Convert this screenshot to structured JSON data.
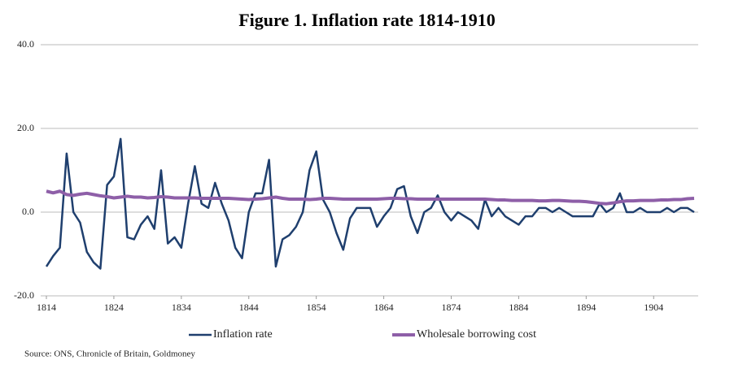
{
  "chart_data": {
    "type": "line",
    "title": "Figure 1. Inflation rate 1814-1910",
    "source": "Source: ONS, Chronicle of Britain, Goldmoney",
    "x": [
      1814,
      1815,
      1816,
      1817,
      1818,
      1819,
      1820,
      1821,
      1822,
      1823,
      1824,
      1825,
      1826,
      1827,
      1828,
      1829,
      1830,
      1831,
      1832,
      1833,
      1834,
      1835,
      1836,
      1837,
      1838,
      1839,
      1840,
      1841,
      1842,
      1843,
      1844,
      1845,
      1846,
      1847,
      1848,
      1849,
      1850,
      1851,
      1852,
      1853,
      1854,
      1855,
      1856,
      1857,
      1858,
      1859,
      1860,
      1861,
      1862,
      1863,
      1864,
      1865,
      1866,
      1867,
      1868,
      1869,
      1870,
      1871,
      1872,
      1873,
      1874,
      1875,
      1876,
      1877,
      1878,
      1879,
      1880,
      1881,
      1882,
      1883,
      1884,
      1885,
      1886,
      1887,
      1888,
      1889,
      1890,
      1891,
      1892,
      1893,
      1894,
      1895,
      1896,
      1897,
      1898,
      1899,
      1900,
      1901,
      1902,
      1903,
      1904,
      1905,
      1906,
      1907,
      1908,
      1909,
      1910
    ],
    "series": [
      {
        "name": "Inflation rate",
        "color": "#1f3f6e",
        "width": 2.5,
        "values": [
          -13,
          -10.5,
          -8.5,
          14,
          0,
          -2.5,
          -9.5,
          -12,
          -13.5,
          6.5,
          8.5,
          17.5,
          -6,
          -6.5,
          -3,
          -1,
          -4,
          10,
          -7.5,
          -6,
          -8.5,
          2,
          11,
          2,
          1,
          7,
          2,
          -2,
          -8.5,
          -11,
          0,
          4.5,
          4.5,
          12.5,
          -13,
          -6.5,
          -5.5,
          -3.5,
          0,
          10,
          14.5,
          3,
          0,
          -5,
          -9,
          -1.5,
          1,
          1,
          1,
          -3.5,
          -1,
          1,
          5.5,
          6.2,
          -1,
          -5,
          0,
          1,
          4,
          0,
          -2,
          0,
          -1,
          -2,
          -4,
          3,
          -1,
          1,
          -1,
          -2,
          -3,
          -1,
          -1,
          1,
          1,
          0,
          1,
          0,
          -1,
          -1,
          -1,
          -1,
          2,
          0,
          1,
          4.5,
          0,
          0,
          1,
          0,
          0,
          0,
          1,
          0,
          1,
          1,
          0
        ]
      },
      {
        "name": "Wholesale borrowing cost",
        "color": "#8e5fa8",
        "width": 4,
        "values": [
          5,
          4.6,
          5,
          4.2,
          4,
          4.3,
          4.5,
          4.2,
          3.9,
          3.7,
          3.4,
          3.6,
          3.8,
          3.6,
          3.6,
          3.4,
          3.5,
          3.7,
          3.6,
          3.4,
          3.4,
          3.4,
          3.4,
          3.3,
          3.3,
          3.3,
          3.3,
          3.3,
          3.2,
          3.1,
          3,
          3.1,
          3.2,
          3.4,
          3.6,
          3.3,
          3.1,
          3.1,
          3.1,
          3.0,
          3.1,
          3.3,
          3.3,
          3.2,
          3.1,
          3.1,
          3.1,
          3.1,
          3.1,
          3.1,
          3.2,
          3.3,
          3.3,
          3.2,
          3.2,
          3.1,
          3.1,
          3.1,
          3.1,
          3.1,
          3.1,
          3.1,
          3.1,
          3.1,
          3.1,
          3.1,
          3.0,
          2.9,
          2.9,
          2.8,
          2.8,
          2.8,
          2.8,
          2.7,
          2.7,
          2.8,
          2.8,
          2.7,
          2.6,
          2.6,
          2.5,
          2.3,
          2.1,
          2.0,
          2.2,
          2.5,
          2.7,
          2.7,
          2.8,
          2.8,
          2.8,
          2.9,
          2.9,
          3.0,
          3.0,
          3.2,
          3.3
        ]
      }
    ],
    "xlim": [
      1814,
      1910
    ],
    "xticks": [
      1814,
      1824,
      1834,
      1844,
      1854,
      1864,
      1874,
      1884,
      1894,
      1904
    ],
    "ylim": [
      -20,
      40
    ],
    "yticks": [
      {
        "value": -20,
        "label": "-20.0"
      },
      {
        "value": 0,
        "label": "0.0"
      },
      {
        "value": 20,
        "label": "20.0"
      },
      {
        "value": 40,
        "label": "40.0"
      }
    ],
    "grid": true,
    "legend": "bottom"
  }
}
